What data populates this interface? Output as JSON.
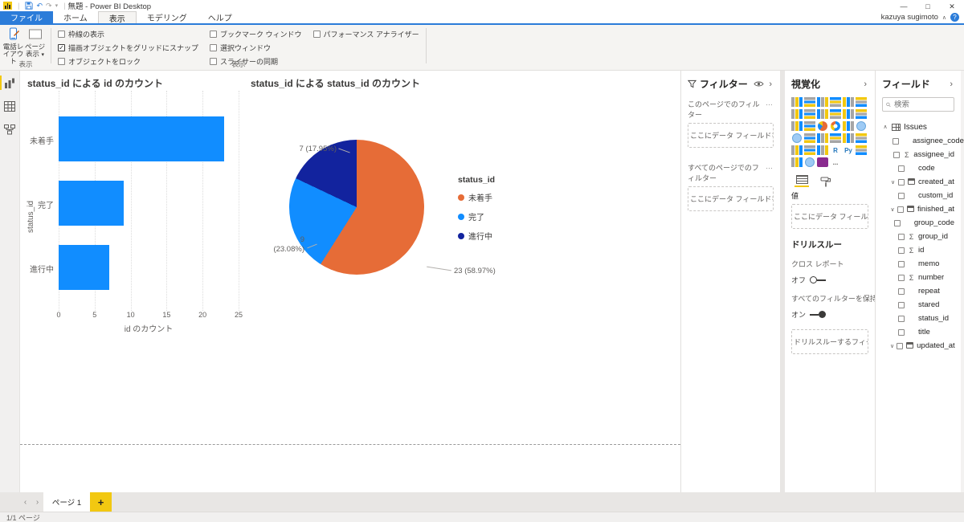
{
  "titlebar": {
    "title": "無題 - Power BI Desktop",
    "user": "kazuya sugimoto",
    "user_menu_glyph": "∧",
    "help_glyph": "?",
    "qat_caret": "▾",
    "separator": "|"
  },
  "window": {
    "minimize": "—",
    "maximize": "□",
    "close": "✕"
  },
  "ribbon": {
    "tabs": [
      {
        "label": "ファイル"
      },
      {
        "label": "ホーム"
      },
      {
        "label": "表示"
      },
      {
        "label": "モデリング"
      },
      {
        "label": "ヘルプ"
      }
    ],
    "active_tab": "表示",
    "view_group": {
      "caption": "表示",
      "buttons": [
        {
          "label": "電話レイアウト"
        },
        {
          "label": "ページ表示",
          "caret": "▾"
        }
      ]
    },
    "show_group": {
      "caption": "表示",
      "columns": [
        [
          {
            "label": "枠線の表示",
            "checked": false
          },
          {
            "label": "描画オブジェクトをグリッドにスナップ",
            "checked": true
          },
          {
            "label": "オブジェクトをロック",
            "checked": false
          }
        ],
        [
          {
            "label": "ブックマーク ウィンドウ",
            "checked": false
          },
          {
            "label": "選択ウィンドウ",
            "checked": false
          },
          {
            "label": "スライサーの同期",
            "checked": false
          }
        ],
        [
          {
            "label": "パフォーマンス アナライザー",
            "checked": false
          }
        ]
      ]
    }
  },
  "chart_data": [
    {
      "type": "bar",
      "orientation": "horizontal",
      "title": "status_id による id のカウント",
      "categories": [
        "未着手",
        "完了",
        "進行中"
      ],
      "values": [
        23,
        9,
        7
      ],
      "xlabel": "id のカウント",
      "ylabel": "status_id",
      "xlim": [
        0,
        25
      ],
      "x_ticks": [
        0,
        5,
        10,
        15,
        20,
        25
      ],
      "bar_color": "#118DFF",
      "grid": true,
      "legend_position": "none"
    },
    {
      "type": "pie",
      "title": "status_id による status_id のカウント",
      "legend_title": "status_id",
      "legend_position": "right",
      "labels": [
        "未着手",
        "完了",
        "進行中"
      ],
      "values": [
        23,
        9,
        7
      ],
      "percents": [
        58.97,
        23.08,
        17.95
      ],
      "colors": [
        "#E66C37",
        "#118DFF",
        "#12239E"
      ],
      "data_labels": [
        "23 (58.97%)",
        "9\n(23.08%)",
        "7 (17.95%)"
      ]
    }
  ],
  "filters_pane": {
    "title": "フィルター",
    "collapse_glyph": "›",
    "more_glyph": "…",
    "sections": [
      {
        "title": "このページでのフィルター",
        "placeholder": "ここにデータ フィールドを追加し..."
      },
      {
        "title": "すべてのページでのフィルター",
        "placeholder": "ここにデータ フィールドを追加し..."
      }
    ]
  },
  "viz_pane": {
    "title": "視覚化",
    "collapse_glyph": "›",
    "gallery": [
      "stacked-bar-chart",
      "stacked-column-chart",
      "clustered-bar-chart",
      "clustered-column-chart",
      "100-stacked-bar-chart",
      "100-stacked-column-chart",
      "line-chart",
      "area-chart",
      "stacked-area-chart",
      "line-and-stacked-column-chart",
      "line-and-clustered-column-chart",
      "ribbon-chart",
      "waterfall-chart",
      "scatter-chart",
      "pie-chart",
      "donut-chart",
      "treemap",
      "map",
      "filled-map",
      "funnel",
      "gauge",
      "card",
      "multi-row-card",
      "kpi",
      "slicer",
      "table",
      "matrix",
      "r-script-visual",
      "python-visual",
      "key-influencers",
      "qa-visual",
      "arcgis-map",
      "power-apps-visual",
      "more-options"
    ],
    "r_label": "R",
    "py_label": "Py",
    "more_label": "...",
    "values_label": "値",
    "values_placeholder": "ここにデータ フィールドを追加して...",
    "drillthrough_label": "ドリルスルー",
    "cross_report_label": "クロス レポート",
    "cross_report_state": "オフ",
    "keep_filters_label": "すべてのフィルターを保持する",
    "keep_filters_state": "オン",
    "drill_placeholder": "ドリルスルーするフィールドをここ..."
  },
  "fields_pane": {
    "title": "フィールド",
    "collapse_glyph": "›",
    "search_placeholder": "検索",
    "table": {
      "name": "Issues",
      "expanded_glyph": "∧"
    },
    "date_chevron": "∨",
    "sigma_glyph": "Σ",
    "items": [
      {
        "name": "assignee_code",
        "icon": "none"
      },
      {
        "name": "assignee_id",
        "icon": "sigma"
      },
      {
        "name": "code",
        "icon": "none"
      },
      {
        "name": "created_at",
        "icon": "date"
      },
      {
        "name": "custom_id",
        "icon": "none"
      },
      {
        "name": "finished_at",
        "icon": "date"
      },
      {
        "name": "group_code",
        "icon": "none"
      },
      {
        "name": "group_id",
        "icon": "sigma"
      },
      {
        "name": "id",
        "icon": "sigma"
      },
      {
        "name": "memo",
        "icon": "none"
      },
      {
        "name": "number",
        "icon": "sigma"
      },
      {
        "name": "repeat",
        "icon": "none"
      },
      {
        "name": "stared",
        "icon": "none"
      },
      {
        "name": "status_id",
        "icon": "none"
      },
      {
        "name": "title",
        "icon": "none"
      },
      {
        "name": "updated_at",
        "icon": "date"
      }
    ]
  },
  "page_bar": {
    "prev": "‹",
    "next": "›",
    "page_label": "ページ 1",
    "add_label": "+"
  },
  "status_bar": {
    "text": "1/1 ページ"
  }
}
